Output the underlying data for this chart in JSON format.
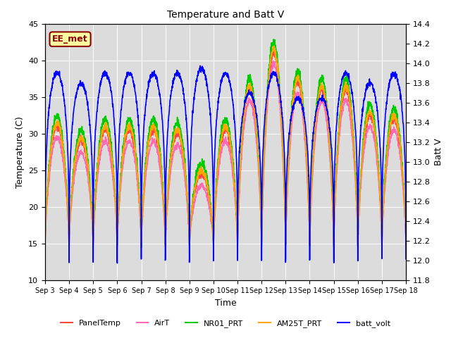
{
  "title": "Temperature and Batt V",
  "xlabel": "Time",
  "ylabel_left": "Temperature (C)",
  "ylabel_right": "Batt V",
  "ylim_left": [
    10,
    45
  ],
  "ylim_right": [
    11.8,
    14.4
  ],
  "yticks_left": [
    10,
    15,
    20,
    25,
    30,
    35,
    40,
    45
  ],
  "yticks_right": [
    11.8,
    12.0,
    12.2,
    12.4,
    12.6,
    12.8,
    13.0,
    13.2,
    13.4,
    13.6,
    13.8,
    14.0,
    14.2,
    14.4
  ],
  "xtick_labels": [
    "Sep 3",
    "Sep 4",
    "Sep 5",
    "Sep 6",
    "Sep 7",
    "Sep 8",
    "Sep 9",
    "Sep 10",
    "Sep 11",
    "Sep 12",
    "Sep 13",
    "Sep 14",
    "Sep 15",
    "Sep 16",
    "Sep 17",
    "Sep 18"
  ],
  "annotation_text": "EE_met",
  "annotation_color": "#8B0000",
  "annotation_bg": "#FFFFA0",
  "series": {
    "PanelTemp": {
      "color": "#FF4444",
      "lw": 1.2
    },
    "AirT": {
      "color": "#FF69B4",
      "lw": 1.2
    },
    "NR01_PRT": {
      "color": "#00CC00",
      "lw": 1.2
    },
    "AM25T_PRT": {
      "color": "#FFA500",
      "lw": 1.2
    },
    "batt_volt": {
      "color": "#0000FF",
      "lw": 1.2
    }
  },
  "legend_items": [
    {
      "label": "PanelTemp",
      "color": "#FF4444"
    },
    {
      "label": "AirT",
      "color": "#FF69B4"
    },
    {
      "label": "NR01_PRT",
      "color": "#00CC00"
    },
    {
      "label": "AM25T_PRT",
      "color": "#FFA500"
    },
    {
      "label": "batt_volt",
      "color": "#0000FF"
    }
  ],
  "days": 15,
  "pts_per_day": 144,
  "temp_base": 15.0,
  "temp_peaks": [
    31,
    29,
    30.5,
    30.5,
    30.5,
    30,
    24.5,
    30.5,
    36,
    41,
    37,
    36,
    36,
    32.5,
    32
  ],
  "batt_night": 12.0,
  "batt_peaks": [
    13.9,
    13.8,
    13.9,
    13.9,
    13.9,
    13.9,
    13.95,
    13.9,
    13.7,
    13.9,
    13.65,
    13.65,
    13.9,
    13.8,
    13.9
  ]
}
